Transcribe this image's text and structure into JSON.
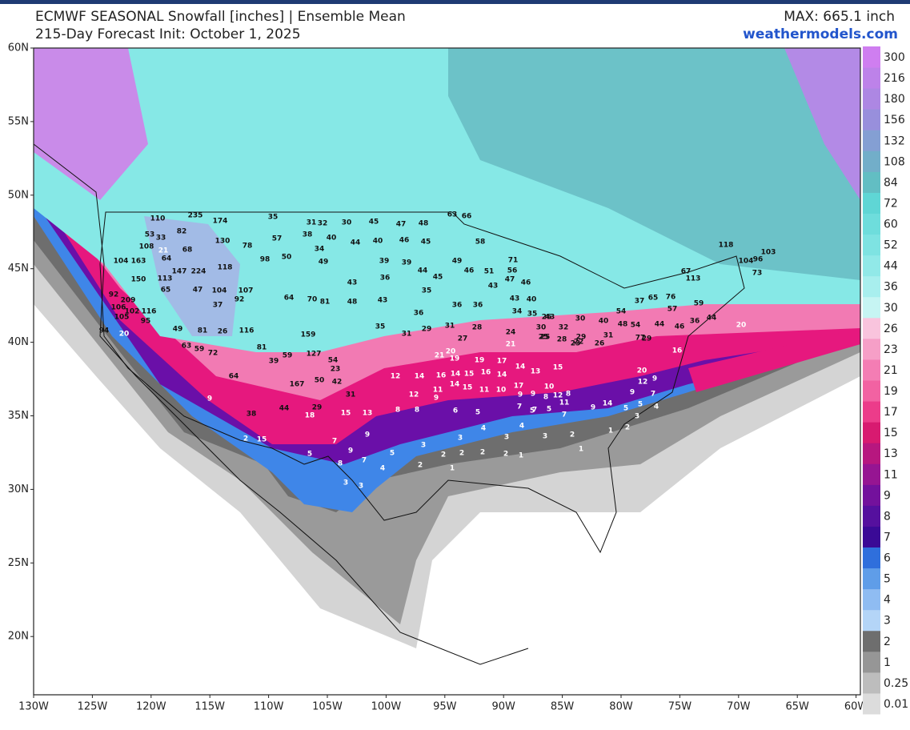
{
  "header": {
    "title": "ECMWF SEASONAL Snowfall [inches] | Ensemble Mean",
    "subtitle": "215-Day Forecast Init: October 1, 2025",
    "max_label": "MAX: 665.1 inch",
    "site": "weathermodels.com"
  },
  "lat_labels": [
    "60N",
    "55N",
    "50N",
    "45N",
    "40N",
    "35N",
    "30N",
    "25N",
    "20N"
  ],
  "lon_labels": [
    "130W",
    "125W",
    "120W",
    "115W",
    "110W",
    "105W",
    "100W",
    "95W",
    "90W",
    "85W",
    "80W",
    "75W",
    "70W",
    "65W",
    "60W"
  ],
  "colorbar": {
    "levels": [
      0.01,
      0.25,
      1,
      2,
      3,
      4,
      5,
      6,
      7,
      8,
      9,
      11,
      13,
      15,
      17,
      19,
      21,
      23,
      26,
      30,
      36,
      44,
      52,
      60,
      72,
      84,
      108,
      132,
      156,
      180,
      216,
      300
    ],
    "colors": [
      "#dcdcdc",
      "#bdbdbd",
      "#969696",
      "#6e6e6e",
      "#b4d5f7",
      "#8fbcf2",
      "#5f9de8",
      "#2f6fdc",
      "#3a0a96",
      "#55109e",
      "#73119c",
      "#961592",
      "#b7177f",
      "#d81a70",
      "#ec3c8a",
      "#f262a2",
      "#f47db4",
      "#f69fc7",
      "#f9c4dd",
      "#c6f5f3",
      "#a8efee",
      "#91e9e8",
      "#7ee3e2",
      "#6edddc",
      "#5fd6d5",
      "#62bec3",
      "#72aec9",
      "#849fd3",
      "#988fdc",
      "#ad87e3",
      "#bd82e9",
      "#cf7ef0"
    ]
  },
  "station_values": [
    110,
    235,
    174,
    82,
    53,
    33,
    130,
    108,
    78,
    68,
    21,
    104,
    163,
    64,
    98,
    150,
    147,
    224,
    118,
    113,
    65,
    92,
    209,
    47,
    104,
    107,
    92,
    37,
    106,
    102,
    116,
    105,
    95,
    94,
    20,
    49,
    81,
    26,
    116,
    63,
    59,
    72,
    35,
    31,
    32,
    30,
    45,
    47,
    48,
    57,
    38,
    40,
    44,
    40,
    46,
    45,
    50,
    34,
    49,
    39,
    39,
    49,
    43,
    36,
    44,
    45,
    64,
    70,
    81,
    48,
    43,
    35,
    36,
    36,
    36,
    31,
    28,
    31,
    35,
    29,
    159,
    127,
    54,
    23,
    50,
    42,
    167,
    31,
    29,
    18,
    15,
    13,
    38,
    44,
    64,
    81,
    39,
    59,
    9,
    15,
    2,
    7,
    9,
    9,
    5,
    8,
    7,
    3,
    3,
    5,
    4,
    2,
    3,
    8,
    8,
    12,
    9,
    6,
    5,
    4,
    3,
    4,
    3,
    2,
    2,
    2,
    1,
    2,
    1,
    3,
    5,
    5,
    7,
    2,
    1,
    14,
    16,
    14,
    14,
    15,
    15,
    16,
    14,
    19,
    19,
    17,
    11,
    10,
    12,
    11,
    21,
    20,
    27,
    24,
    21,
    25,
    28,
    22,
    17,
    9,
    14,
    13,
    10,
    15,
    12,
    9,
    8,
    11,
    8,
    7,
    7,
    20,
    12,
    9,
    7,
    9,
    5,
    5,
    4,
    3,
    2,
    1,
    14,
    9,
    16,
    20,
    48,
    54,
    77,
    44,
    46,
    36,
    44,
    59,
    113,
    67,
    118,
    104,
    96,
    73,
    103,
    57,
    65,
    76,
    37,
    54,
    29,
    31,
    40,
    71,
    56,
    47,
    46,
    51,
    46,
    58,
    63,
    66,
    43,
    43,
    40,
    34,
    35,
    26,
    43,
    30,
    25,
    32,
    30,
    29,
    23,
    26
  ]
}
